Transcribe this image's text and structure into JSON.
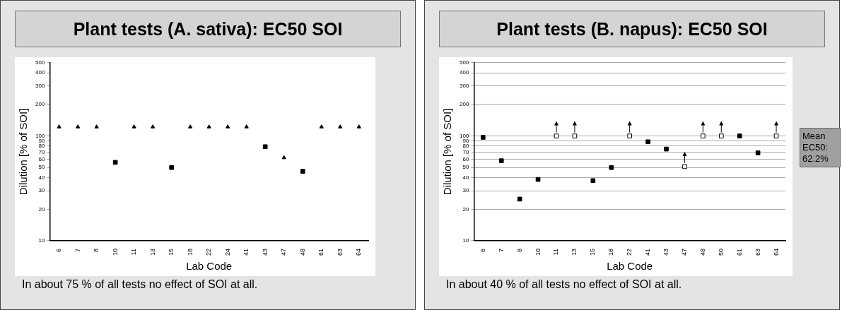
{
  "chart_data": [
    {
      "type": "scatter",
      "title": "Plant tests (A. sativa): EC50 SOI",
      "xlabel": "Lab Code",
      "ylabel": "Dilution [% of SOI]",
      "categories": [
        "6",
        "7",
        "8",
        "10",
        "11",
        "13",
        "15",
        "18",
        "22",
        "24",
        "41",
        "43",
        "47",
        "48",
        "61",
        "63",
        "64"
      ],
      "series": [
        {
          "color": "#000000",
          "marker": "triangle",
          "values": [
            122,
            122,
            122,
            null,
            122,
            122,
            null,
            122,
            122,
            122,
            122,
            null,
            62,
            null,
            122,
            122,
            122
          ]
        },
        {
          "color": "#000000",
          "marker": "square",
          "values": [
            null,
            null,
            null,
            56,
            null,
            null,
            50,
            null,
            null,
            null,
            null,
            79,
            null,
            46,
            null,
            null,
            null
          ]
        }
      ],
      "log": "y",
      "ylim": [
        10,
        500
      ],
      "yticks": [
        10,
        20,
        30,
        40,
        50,
        60,
        70,
        80,
        90,
        100,
        200,
        300,
        400,
        500
      ],
      "grid": false,
      "legend": false,
      "annotations": [
        "In about 75 % of all tests no effect of SOI at all."
      ]
    },
    {
      "type": "scatter",
      "title": "Plant tests (B. napus): EC50 SOI",
      "xlabel": "Lab Code",
      "ylabel": "Dilution [% of SOI]",
      "categories": [
        "6",
        "7",
        "8",
        "10",
        "11",
        "13",
        "15",
        "18",
        "22",
        "41",
        "43",
        "47",
        "48",
        "50",
        "61",
        "63",
        "64"
      ],
      "series": [
        {
          "color": "#000000",
          "marker": "square",
          "values": [
            97,
            58,
            25,
            38.5,
            null,
            null,
            37.5,
            50,
            null,
            88,
            75,
            null,
            null,
            null,
            100,
            69,
            null
          ]
        },
        {
          "color": "#ffffff",
          "marker": "square",
          "values": [
            null,
            null,
            null,
            null,
            100,
            100,
            null,
            null,
            100,
            null,
            null,
            51,
            100,
            100,
            null,
            null,
            100
          ]
        }
      ],
      "log": "y",
      "ylim": [
        10,
        500
      ],
      "yticks": [
        10,
        20,
        30,
        40,
        50,
        60,
        70,
        80,
        90,
        100,
        200,
        300,
        400,
        500
      ],
      "grid": "y",
      "legend": false,
      "annotations": [
        "In about 40 % of all tests no effect of SOI at all.",
        "Mean EC50: 62.2%"
      ]
    }
  ]
}
